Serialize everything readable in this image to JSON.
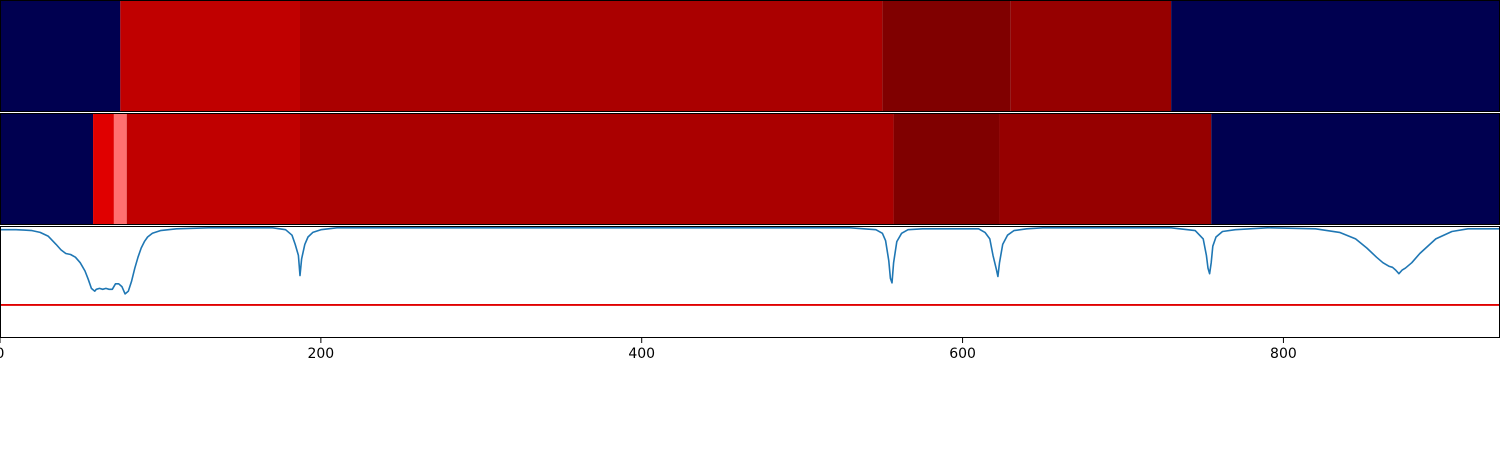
{
  "chart_data": [
    {
      "type": "heatmap",
      "title": "",
      "xlim": [
        0,
        935
      ],
      "colors": {
        "background": "#000050"
      },
      "segments": [
        {
          "x0": 0,
          "x1": 75,
          "color": "#000050"
        },
        {
          "x0": 75,
          "x1": 187,
          "color": "#c00000"
        },
        {
          "x0": 187,
          "x1": 550,
          "color": "#aa0000"
        },
        {
          "x0": 550,
          "x1": 630,
          "color": "#800000"
        },
        {
          "x0": 630,
          "x1": 730,
          "color": "#960000"
        },
        {
          "x0": 730,
          "x1": 935,
          "color": "#000050"
        }
      ]
    },
    {
      "type": "heatmap",
      "title": "",
      "xlim": [
        0,
        935
      ],
      "colors": {
        "background": "#000050"
      },
      "segments": [
        {
          "x0": 0,
          "x1": 58,
          "color": "#000050"
        },
        {
          "x0": 58,
          "x1": 71,
          "color": "#e00000"
        },
        {
          "x0": 71,
          "x1": 79,
          "color": "#ff7070"
        },
        {
          "x0": 79,
          "x1": 187,
          "color": "#c00000"
        },
        {
          "x0": 187,
          "x1": 557,
          "color": "#aa0000"
        },
        {
          "x0": 557,
          "x1": 623,
          "color": "#800000"
        },
        {
          "x0": 623,
          "x1": 755,
          "color": "#960000"
        },
        {
          "x0": 755,
          "x1": 935,
          "color": "#000050"
        }
      ]
    },
    {
      "type": "line",
      "title": "",
      "xlabel": "",
      "ylabel": "",
      "xlim": [
        0,
        935
      ],
      "ylim": [
        -1.2,
        0.02
      ],
      "grid": false,
      "xticks": [
        0,
        200,
        400,
        600,
        800
      ],
      "xtick_labels": [
        "0",
        "200",
        "400",
        "600",
        "800"
      ],
      "threshold": {
        "value": -0.84,
        "color": "#e00000"
      },
      "series": [
        {
          "color": "#1f77b4",
          "x": [
            0,
            5,
            10,
            15,
            20,
            25,
            30,
            35,
            38,
            41,
            44,
            47,
            50,
            53,
            55,
            57,
            59,
            60,
            62,
            64,
            66,
            68,
            70,
            72,
            74,
            76,
            78,
            80,
            82,
            84,
            86,
            88,
            90,
            92,
            95,
            100,
            110,
            130,
            150,
            170,
            178,
            182,
            184,
            186,
            187,
            188,
            190,
            192,
            195,
            200,
            210,
            250,
            350,
            450,
            530,
            546,
            550,
            552,
            554,
            555,
            556,
            557,
            559,
            562,
            566,
            575,
            590,
            610,
            614,
            617,
            619,
            621,
            622,
            623,
            625,
            628,
            632,
            640,
            650,
            670,
            700,
            730,
            745,
            750,
            752,
            753,
            754,
            755,
            756,
            758,
            762,
            770,
            790,
            820,
            835,
            845,
            852,
            858,
            862,
            866,
            868,
            870,
            872,
            874,
            876,
            880,
            885,
            895,
            905,
            915,
            935
          ],
          "y": [
            -0.02,
            -0.02,
            -0.02,
            -0.025,
            -0.03,
            -0.05,
            -0.09,
            -0.18,
            -0.24,
            -0.28,
            -0.29,
            -0.32,
            -0.38,
            -0.47,
            -0.56,
            -0.66,
            -0.69,
            -0.67,
            -0.66,
            -0.67,
            -0.66,
            -0.67,
            -0.67,
            -0.61,
            -0.61,
            -0.64,
            -0.72,
            -0.69,
            -0.58,
            -0.44,
            -0.32,
            -0.22,
            -0.15,
            -0.1,
            -0.06,
            -0.03,
            -0.01,
            0,
            0,
            0,
            -0.02,
            -0.08,
            -0.18,
            -0.3,
            -0.52,
            -0.34,
            -0.18,
            -0.1,
            -0.05,
            -0.02,
            0,
            0,
            0,
            0,
            0,
            -0.02,
            -0.06,
            -0.14,
            -0.36,
            -0.55,
            -0.6,
            -0.38,
            -0.15,
            -0.06,
            -0.02,
            -0.01,
            -0.01,
            -0.01,
            -0.05,
            -0.12,
            -0.3,
            -0.45,
            -0.53,
            -0.38,
            -0.18,
            -0.08,
            -0.03,
            -0.01,
            0,
            0,
            0,
            0,
            -0.03,
            -0.12,
            -0.3,
            -0.44,
            -0.5,
            -0.38,
            -0.2,
            -0.1,
            -0.04,
            -0.02,
            0,
            -0.01,
            -0.05,
            -0.12,
            -0.22,
            -0.32,
            -0.38,
            -0.42,
            -0.43,
            -0.46,
            -0.5,
            -0.46,
            -0.44,
            -0.38,
            -0.28,
            -0.12,
            -0.04,
            -0.01,
            -0.01
          ]
        }
      ]
    }
  ]
}
